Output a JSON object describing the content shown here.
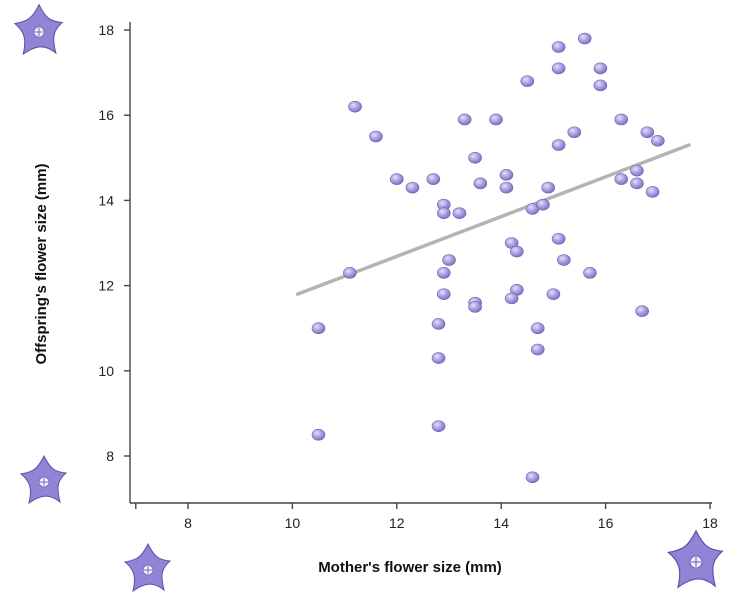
{
  "chart_data": {
    "type": "scatter",
    "xlabel": "Mother's flower size (mm)",
    "ylabel": "Offspring's flower size (mm)",
    "xlim": [
      7,
      18
    ],
    "ylim": [
      7,
      18.5
    ],
    "xticks": [
      "8",
      "10",
      "12",
      "14",
      "16",
      "18"
    ],
    "yticks": [
      "8",
      "10",
      "12",
      "14",
      "16",
      "18"
    ],
    "grid": false,
    "legend": "none",
    "point_color": "#a7a0e0",
    "trendline_color": "#b4b4b4",
    "points": [
      {
        "x": 11.2,
        "y": 16.2
      },
      {
        "x": 11.6,
        "y": 15.5
      },
      {
        "x": 11.1,
        "y": 12.3
      },
      {
        "x": 10.5,
        "y": 11.0
      },
      {
        "x": 10.5,
        "y": 8.5
      },
      {
        "x": 12.0,
        "y": 14.5
      },
      {
        "x": 12.3,
        "y": 14.3
      },
      {
        "x": 12.7,
        "y": 14.5
      },
      {
        "x": 12.9,
        "y": 13.9
      },
      {
        "x": 12.9,
        "y": 13.7
      },
      {
        "x": 13.2,
        "y": 13.7
      },
      {
        "x": 13.0,
        "y": 12.6
      },
      {
        "x": 12.9,
        "y": 12.3
      },
      {
        "x": 12.9,
        "y": 11.8
      },
      {
        "x": 12.8,
        "y": 11.1
      },
      {
        "x": 12.8,
        "y": 10.3
      },
      {
        "x": 12.8,
        "y": 8.7
      },
      {
        "x": 13.3,
        "y": 15.9
      },
      {
        "x": 13.5,
        "y": 15.0
      },
      {
        "x": 13.6,
        "y": 14.4
      },
      {
        "x": 13.9,
        "y": 15.9
      },
      {
        "x": 13.5,
        "y": 11.6
      },
      {
        "x": 13.5,
        "y": 11.5
      },
      {
        "x": 14.1,
        "y": 14.6
      },
      {
        "x": 14.1,
        "y": 14.3
      },
      {
        "x": 14.2,
        "y": 13.0
      },
      {
        "x": 14.3,
        "y": 12.8
      },
      {
        "x": 14.3,
        "y": 11.9
      },
      {
        "x": 14.2,
        "y": 11.7
      },
      {
        "x": 14.5,
        "y": 16.8
      },
      {
        "x": 14.6,
        "y": 13.8
      },
      {
        "x": 14.8,
        "y": 13.9
      },
      {
        "x": 14.9,
        "y": 14.3
      },
      {
        "x": 14.7,
        "y": 11.0
      },
      {
        "x": 14.7,
        "y": 10.5
      },
      {
        "x": 14.6,
        "y": 7.5
      },
      {
        "x": 15.0,
        "y": 11.8
      },
      {
        "x": 15.1,
        "y": 17.6
      },
      {
        "x": 15.1,
        "y": 17.1
      },
      {
        "x": 15.1,
        "y": 15.3
      },
      {
        "x": 15.1,
        "y": 13.1
      },
      {
        "x": 15.2,
        "y": 12.6
      },
      {
        "x": 15.4,
        "y": 15.6
      },
      {
        "x": 15.6,
        "y": 17.8
      },
      {
        "x": 15.7,
        "y": 12.3
      },
      {
        "x": 15.9,
        "y": 17.1
      },
      {
        "x": 15.9,
        "y": 16.7
      },
      {
        "x": 16.3,
        "y": 15.9
      },
      {
        "x": 16.3,
        "y": 14.5
      },
      {
        "x": 16.6,
        "y": 14.7
      },
      {
        "x": 16.6,
        "y": 14.4
      },
      {
        "x": 16.7,
        "y": 11.4
      },
      {
        "x": 16.8,
        "y": 15.6
      },
      {
        "x": 16.9,
        "y": 14.2
      },
      {
        "x": 17.0,
        "y": 15.4
      }
    ],
    "trendline": {
      "x": [
        10.1,
        17.6
      ],
      "y": [
        11.8,
        15.3
      ]
    }
  },
  "decorations": {
    "flower_icons": [
      "flower-icon",
      "flower-icon",
      "flower-icon",
      "flower-icon"
    ]
  }
}
